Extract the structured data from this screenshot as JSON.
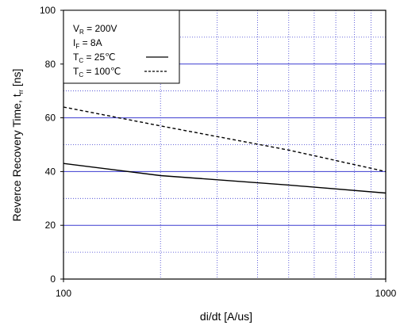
{
  "chart_data": {
    "type": "line",
    "x_scale": "log",
    "xlim": [
      100,
      1000
    ],
    "ylim": [
      0,
      100
    ],
    "x_ticks": [
      "100",
      "1000"
    ],
    "y_ticks": [
      "0",
      "20",
      "40",
      "60",
      "80",
      "100"
    ],
    "xlabel": "di/dt [A/us]",
    "ylabel": {
      "text": "Reverce Recovery Time, t",
      "sub": "rr",
      "unit": " [ns]"
    },
    "grid": true,
    "series": [
      {
        "name": "T_C = 25℃",
        "style": "solid",
        "color": "#000000",
        "x": [
          100,
          200,
          500,
          1000
        ],
        "y": [
          43,
          38.5,
          35,
          32
        ]
      },
      {
        "name": "T_C = 100℃",
        "style": "dashed",
        "color": "#000000",
        "x": [
          100,
          200,
          500,
          1000
        ],
        "y": [
          64,
          57,
          48,
          40
        ]
      }
    ],
    "legend": {
      "placement": "top-left",
      "lines": [
        {
          "main": "V",
          "sub": "R",
          "rest": " = 200V"
        },
        {
          "main": "I",
          "sub": "F",
          "rest": " = 8A"
        },
        {
          "main": "T",
          "sub": "C",
          "rest": " =   25℃"
        },
        {
          "main": "T",
          "sub": "C",
          "rest": " = 100℃"
        }
      ]
    },
    "colors": {
      "grid": "#3b3bd0",
      "frame": "#000000",
      "background": "#ffffff"
    }
  }
}
